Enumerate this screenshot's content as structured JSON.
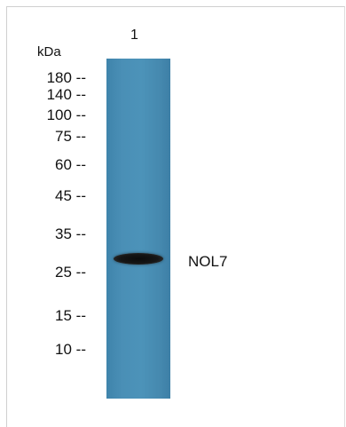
{
  "lane_label": "1",
  "unit_label": "kDa",
  "markers": [
    "180 --",
    "140 --",
    "100 --",
    "75 --",
    "60 --",
    "45 --",
    "35 --",
    "25 --",
    "15 --",
    "10 --"
  ],
  "band_label": "NOL7",
  "colors": {
    "lane": "#4a8fb6",
    "band": "#111111",
    "background": "#ffffff"
  }
}
